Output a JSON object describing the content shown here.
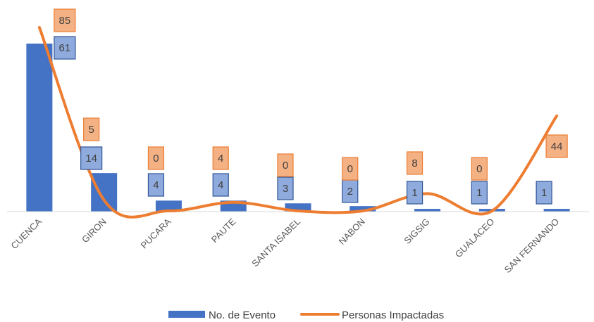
{
  "chart_data": {
    "type": "bar",
    "categories": [
      "CUENCA",
      "GIRON",
      "PUCARA",
      "PAUTE",
      "SANTA ISABEL",
      "NABON",
      "SIGSIG",
      "GUALACEO",
      "SAN FERNANDO"
    ],
    "series": [
      {
        "name": "No. de Evento",
        "type": "bar",
        "values": [
          61,
          14,
          4,
          4,
          3,
          2,
          1,
          1,
          1
        ],
        "color": "#4472C4",
        "label_fill": "#8FAADC",
        "label_stroke": "#2F5597"
      },
      {
        "name": "Personas Impactadas",
        "type": "line",
        "smooth": true,
        "values": [
          85,
          5,
          0,
          4,
          0,
          0,
          8,
          0,
          44
        ],
        "color": "#ED7D31",
        "label_fill": "#F4B183",
        "label_stroke": "#ED7D31"
      }
    ],
    "title": "",
    "xlabel": "",
    "ylabel": "",
    "grid": false,
    "legend": "bottom"
  }
}
